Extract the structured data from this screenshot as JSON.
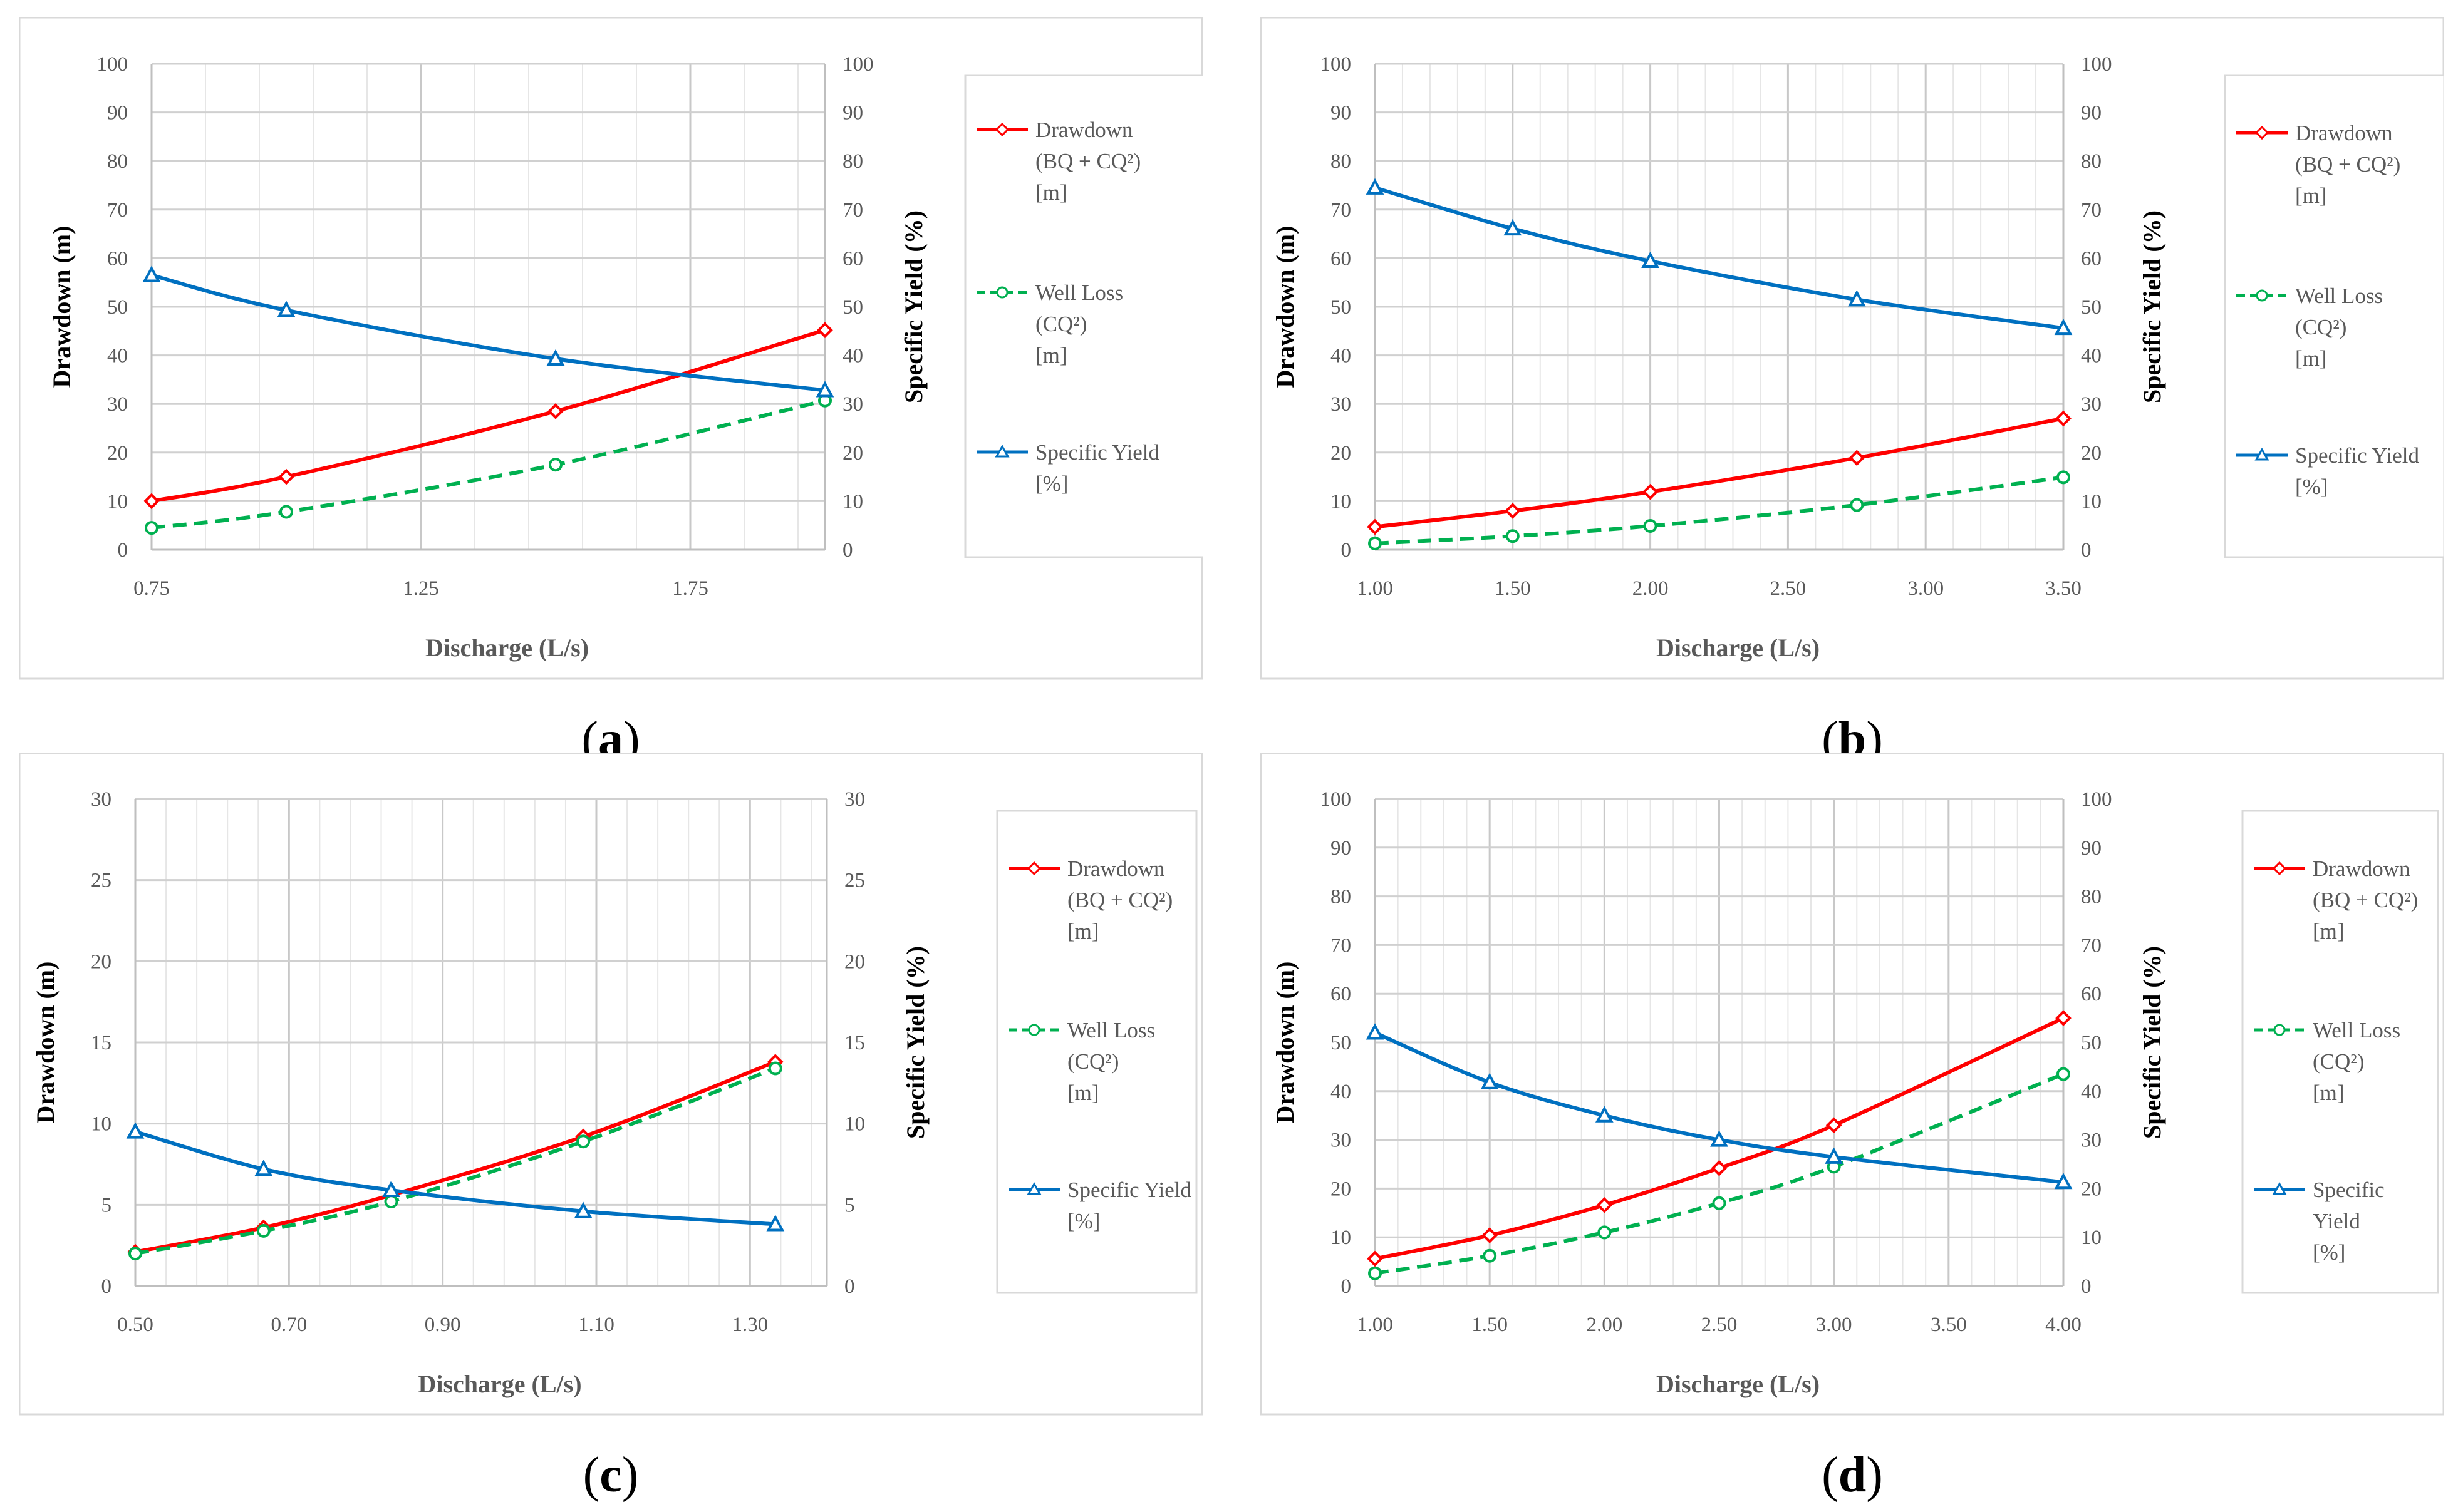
{
  "figure": {
    "legend_labels": {
      "drawdown": [
        "Drawdown",
        "(BQ + CQ²)",
        "[m]"
      ],
      "well_loss": [
        "Well Loss",
        "(CQ²)",
        "[m]"
      ],
      "specific_yield": [
        "Specific Yield",
        "[%]"
      ],
      "specific_yield_split": [
        "Specific",
        "Yield",
        "[%]"
      ]
    },
    "colors": {
      "drawdown": "#ff0000",
      "well_loss": "#00b050",
      "specific_yield": "#0070c0",
      "grid": "#d9d9d9",
      "frame": "#d9d9d9"
    }
  },
  "chart_data": [
    {
      "type": "line",
      "panel_label": "a",
      "caption_parts": [
        "(",
        "a",
        ")"
      ],
      "xlabel": "Discharge   (L/s)",
      "ylabel": "Drawdown  (m)",
      "y2label": "Specific Yield    (%)",
      "xlim": [
        0.75,
        2.0
      ],
      "xticks": [
        0.75,
        1.25,
        1.75
      ],
      "xtick_labels": [
        "0.75",
        "1.25",
        "1.75"
      ],
      "ylim": [
        0,
        100
      ],
      "yticks": [
        0,
        10,
        20,
        30,
        40,
        50,
        60,
        70,
        80,
        90,
        100
      ],
      "y2lim": [
        0,
        100
      ],
      "y2ticks": [
        0,
        10,
        20,
        30,
        40,
        50,
        60,
        70,
        80,
        90,
        100
      ],
      "series": [
        {
          "name": "Drawdown (BQ + CQ²) [m]",
          "key": "drawdown",
          "axis": "left",
          "x": [
            0.75,
            1.0,
            1.5,
            2.0
          ],
          "values": [
            10.0,
            15.0,
            28.5,
            45.2
          ]
        },
        {
          "name": "Well Loss (CQ²) [m]",
          "key": "well_loss",
          "axis": "left",
          "x": [
            0.75,
            1.0,
            1.5,
            2.0
          ],
          "values": [
            4.5,
            7.8,
            17.5,
            30.7
          ]
        },
        {
          "name": "Specific Yield [%]",
          "key": "specific_yield",
          "axis": "right",
          "x": [
            0.75,
            1.0,
            1.5,
            2.0
          ],
          "values": [
            56.5,
            49.3,
            39.3,
            32.8
          ]
        }
      ]
    },
    {
      "type": "line",
      "panel_label": "b",
      "caption_parts": [
        "(",
        "b",
        ")"
      ],
      "xlabel": "Discharge   (L/s)",
      "ylabel": "Drawdown  (m)",
      "y2label": "Specific Yield    (%)",
      "xlim": [
        1.0,
        3.5
      ],
      "xticks": [
        1.0,
        1.5,
        2.0,
        2.5,
        3.0,
        3.5
      ],
      "xtick_labels": [
        "1.00",
        "1.50",
        "2.00",
        "2.50",
        "3.00",
        "3.50"
      ],
      "ylim": [
        0,
        100
      ],
      "yticks": [
        0,
        10,
        20,
        30,
        40,
        50,
        60,
        70,
        80,
        90,
        100
      ],
      "y2lim": [
        0,
        100
      ],
      "y2ticks": [
        0,
        10,
        20,
        30,
        40,
        50,
        60,
        70,
        80,
        90,
        100
      ],
      "series": [
        {
          "name": "Drawdown (BQ + CQ²) [m]",
          "key": "drawdown",
          "axis": "left",
          "x": [
            1.0,
            1.5,
            2.0,
            2.75,
            3.5
          ],
          "values": [
            4.7,
            8.0,
            11.9,
            18.9,
            27.0
          ]
        },
        {
          "name": "Well Loss (CQ²) [m]",
          "key": "well_loss",
          "axis": "left",
          "x": [
            1.0,
            1.5,
            2.0,
            2.75,
            3.5
          ],
          "values": [
            1.3,
            2.8,
            4.9,
            9.2,
            14.9
          ]
        },
        {
          "name": "Specific Yield [%]",
          "key": "specific_yield",
          "axis": "right",
          "x": [
            1.0,
            1.5,
            2.0,
            2.75,
            3.5
          ],
          "values": [
            74.5,
            66.1,
            59.4,
            51.5,
            45.6
          ]
        }
      ]
    },
    {
      "type": "line",
      "panel_label": "c",
      "caption_parts": [
        "(",
        "c",
        ")"
      ],
      "xlabel": "Discharge   (L/s)",
      "ylabel": "Drawdown  (m)",
      "y2label": "Specific Yield    (%)",
      "xlim": [
        0.5,
        1.4
      ],
      "xticks": [
        0.5,
        0.7,
        0.9,
        1.1,
        1.3
      ],
      "xtick_labels": [
        "0.50",
        "0.70",
        "0.90",
        "1.10",
        "1.30"
      ],
      "ylim": [
        0,
        30
      ],
      "yticks": [
        0,
        5,
        10,
        15,
        20,
        25,
        30
      ],
      "y2lim": [
        0,
        30
      ],
      "y2ticks": [
        0,
        5,
        10,
        15,
        20,
        25,
        30
      ],
      "series": [
        {
          "name": "Drawdown (BQ + CQ²) [m]",
          "key": "drawdown",
          "axis": "left",
          "x": [
            0.5,
            0.667,
            0.833,
            1.083,
            1.333
          ],
          "values": [
            2.1,
            3.6,
            5.6,
            9.2,
            13.8
          ]
        },
        {
          "name": "Well Loss (CQ²) [m]",
          "key": "well_loss",
          "axis": "left",
          "x": [
            0.5,
            0.667,
            0.833,
            1.083,
            1.333
          ],
          "values": [
            2.0,
            3.4,
            5.2,
            8.9,
            13.4
          ]
        },
        {
          "name": "Specific Yield [%]",
          "key": "specific_yield",
          "axis": "right",
          "x": [
            0.5,
            0.667,
            0.833,
            1.083,
            1.333
          ],
          "values": [
            9.5,
            7.2,
            5.9,
            4.6,
            3.8
          ]
        }
      ]
    },
    {
      "type": "line",
      "panel_label": "d",
      "caption_parts": [
        "(",
        "d",
        ")"
      ],
      "xlabel": "Discharge   (L/s)",
      "ylabel": "Drawdown  (m)",
      "y2label": "Specific Yield    (%)",
      "xlim": [
        1.0,
        4.0
      ],
      "xticks": [
        1.0,
        1.5,
        2.0,
        2.5,
        3.0,
        3.5,
        4.0
      ],
      "xtick_labels": [
        "1.00",
        "1.50",
        "2.00",
        "2.50",
        "3.00",
        "3.50",
        "4.00"
      ],
      "ylim": [
        0,
        100
      ],
      "yticks": [
        0,
        10,
        20,
        30,
        40,
        50,
        60,
        70,
        80,
        90,
        100
      ],
      "y2lim": [
        0,
        100
      ],
      "y2ticks": [
        0,
        10,
        20,
        30,
        40,
        50,
        60,
        70,
        80,
        90,
        100
      ],
      "series": [
        {
          "name": "Drawdown (BQ + CQ²) [m]",
          "key": "drawdown",
          "axis": "left",
          "x": [
            1.0,
            1.5,
            2.0,
            2.5,
            3.0,
            4.0
          ],
          "values": [
            5.6,
            10.4,
            16.6,
            24.2,
            33.0,
            55.0
          ]
        },
        {
          "name": "Well Loss (CQ²) [m]",
          "key": "well_loss",
          "axis": "left",
          "x": [
            1.0,
            1.5,
            2.0,
            2.5,
            3.0,
            4.0
          ],
          "values": [
            2.6,
            6.2,
            11.0,
            17.0,
            24.5,
            43.5
          ]
        },
        {
          "name": "Specific Yield [%]",
          "key": "specific_yield",
          "axis": "right",
          "x": [
            1.0,
            1.5,
            2.0,
            2.5,
            3.0,
            4.0
          ],
          "values": [
            52.0,
            41.8,
            35.0,
            30.0,
            26.5,
            21.3
          ]
        }
      ]
    }
  ]
}
